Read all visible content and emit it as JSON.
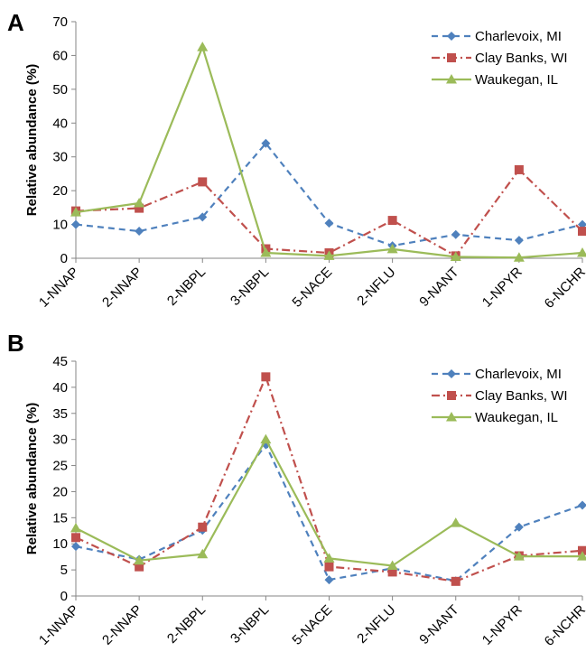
{
  "chart_data": [
    {
      "panel": "A",
      "type": "line",
      "ylabel": "Relative abundance (%)",
      "ylim": [
        0,
        70
      ],
      "yticks": [
        "0",
        "10",
        "20",
        "30",
        "40",
        "50",
        "60",
        "70"
      ],
      "categories": [
        "1-NNAP",
        "2-NNAP",
        "2-NBPL",
        "3-NBPL",
        "5-NACE",
        "2-NFLU",
        "9-NANT",
        "1-NPYR",
        "6-NCHR"
      ],
      "legend_position": "top-right",
      "series": [
        {
          "name": "Charlevoix, MI",
          "color": "#4F81BD",
          "marker": "diamond",
          "dash": "dashed",
          "values": [
            10,
            8,
            12.2,
            34,
            10.4,
            3.7,
            7,
            5.3,
            10
          ]
        },
        {
          "name": "Clay Banks, WI",
          "color": "#C0504D",
          "marker": "square",
          "dash": "dashdot",
          "values": [
            14,
            14.8,
            22.6,
            2.8,
            1.6,
            11.2,
            0.7,
            26.2,
            8
          ]
        },
        {
          "name": "Waukegan, IL",
          "color": "#9BBB59",
          "marker": "triangle",
          "dash": "solid",
          "values": [
            13.6,
            16.3,
            62.5,
            1.6,
            0.7,
            2.7,
            0.4,
            0.2,
            1.6
          ]
        }
      ]
    },
    {
      "panel": "B",
      "type": "line",
      "ylabel": "Relative abundance (%)",
      "ylim": [
        0,
        45
      ],
      "yticks": [
        "0",
        "5",
        "10",
        "15",
        "20",
        "25",
        "30",
        "35",
        "40",
        "45"
      ],
      "categories": [
        "1-NNAP",
        "2-NNAP",
        "2-NBPL",
        "3-NBPL",
        "5-NACE",
        "2-NFLU",
        "9-NANT",
        "1-NPYR",
        "6-NCHR"
      ],
      "legend_position": "top-right",
      "series": [
        {
          "name": "Charlevoix, MI",
          "color": "#4F81BD",
          "marker": "diamond",
          "dash": "dashed",
          "values": [
            9.5,
            7,
            12.6,
            29,
            3.1,
            5.3,
            2.9,
            13.2,
            17.4
          ]
        },
        {
          "name": "Clay Banks, WI",
          "color": "#C0504D",
          "marker": "square",
          "dash": "dashdot",
          "values": [
            11.2,
            5.6,
            13.2,
            42,
            5.6,
            4.6,
            2.8,
            7.7,
            8.7
          ]
        },
        {
          "name": "Waukegan, IL",
          "color": "#9BBB59",
          "marker": "triangle",
          "dash": "solid",
          "values": [
            13,
            6.8,
            8,
            30,
            7.2,
            5.8,
            14,
            7.6,
            7.6
          ]
        }
      ]
    }
  ]
}
